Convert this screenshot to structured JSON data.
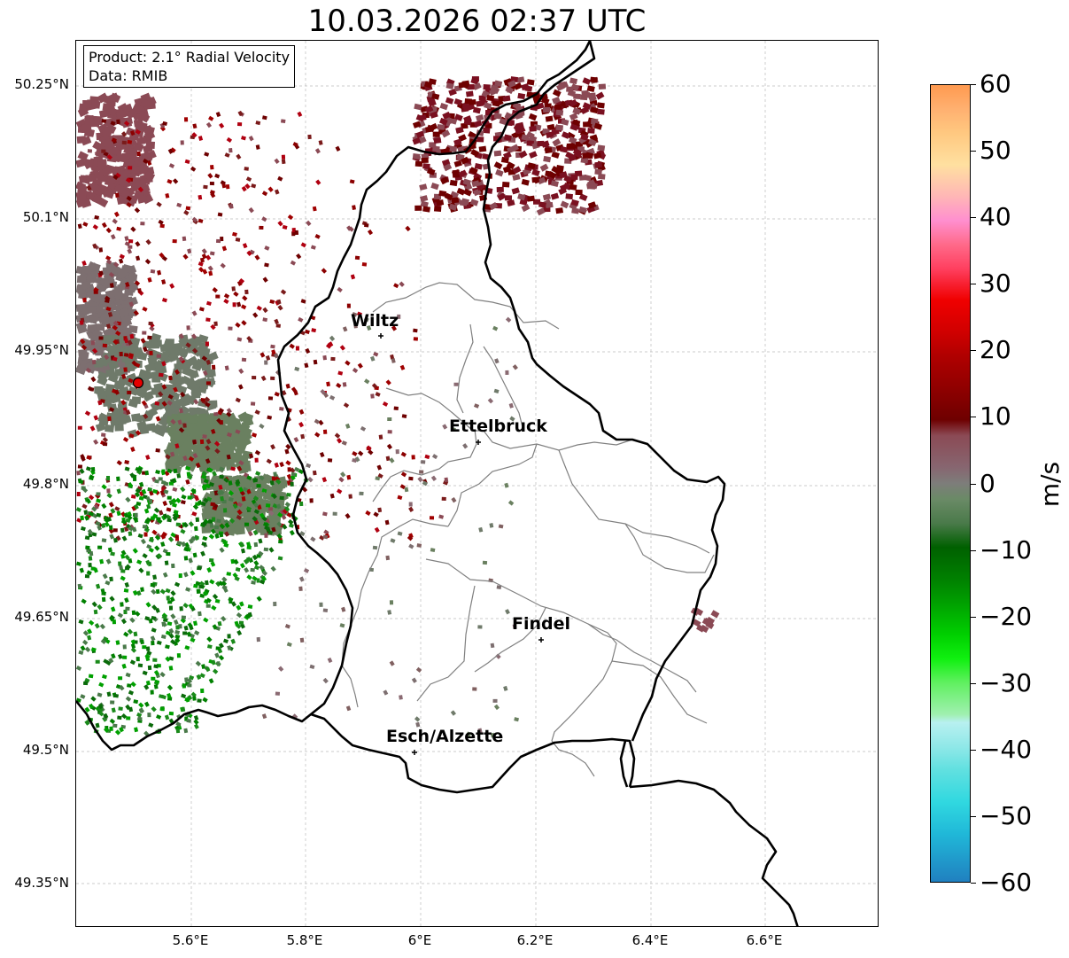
{
  "title": "10.03.2026 02:37 UTC",
  "product_box": {
    "line1": "Product: 2.1° Radial Velocity",
    "line2": "Data: RMIB"
  },
  "lat_labels": [
    "50.25°N",
    "50.1°N",
    "49.95°N",
    "49.8°N",
    "49.65°N",
    "49.5°N",
    "49.35°N"
  ],
  "lon_labels": [
    "5.6°E",
    "5.8°E",
    "6°E",
    "6.2°E",
    "6.4°E",
    "6.6°E"
  ],
  "cities": [
    {
      "name": "Wiltz",
      "lon": 5.93,
      "lat": 49.97
    },
    {
      "name": "Ettelbruck",
      "lon": 6.1,
      "lat": 49.85
    },
    {
      "name": "Findel",
      "lon": 6.21,
      "lat": 49.627
    },
    {
      "name": "Esch/Alzette",
      "lon": 5.99,
      "lat": 49.5
    }
  ],
  "radar_site": {
    "lon": 5.505,
    "lat": 49.915
  },
  "colorbar": {
    "unit": "m/s",
    "min": -60,
    "max": 60,
    "ticks": [
      "60",
      "50",
      "40",
      "30",
      "20",
      "10",
      "0",
      "−10",
      "−20",
      "−30",
      "−40",
      "−50",
      "−60"
    ]
  },
  "colors": {
    "receding_dark": "#6e0000",
    "receding_mid": "#8b4a55",
    "near_zero": "#7d6f70",
    "approaching_dark": "#0a6b0a",
    "approaching_light": "#00e600",
    "border": "#000000",
    "canton": "#808080"
  }
}
